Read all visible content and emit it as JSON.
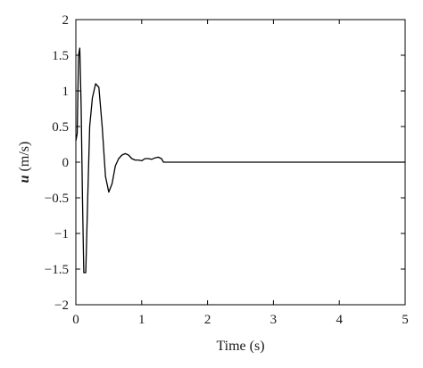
{
  "chart_data": {
    "type": "line",
    "title": "",
    "xlabel": "Time (s)",
    "ylabel_var": "u",
    "ylabel_unit": " (m/s)",
    "xlim": [
      0,
      5
    ],
    "ylim": [
      -2,
      2
    ],
    "x_ticks": [
      0,
      1,
      2,
      3,
      4,
      5
    ],
    "x_tick_labels": [
      "0",
      "1",
      "2",
      "3",
      "4",
      "5"
    ],
    "y_ticks": [
      2,
      1.5,
      1,
      0.5,
      0,
      -0.5,
      -1,
      -1.5,
      -2
    ],
    "y_tick_labels": [
      "2",
      "1.5",
      "1",
      "0.5",
      "0",
      "−0.5",
      "−1",
      "−1.5",
      "−2"
    ],
    "grid": false,
    "line_color": "#000000",
    "series": [
      {
        "x": [
          0,
          0.02,
          0.04,
          0.06,
          0.08,
          0.1,
          0.12,
          0.15,
          0.18,
          0.21,
          0.25,
          0.3,
          0.35,
          0.4,
          0.45,
          0.5,
          0.55,
          0.6,
          0.65,
          0.7,
          0.75,
          0.8,
          0.85,
          0.9,
          0.95,
          1.0,
          1.05,
          1.1,
          1.15,
          1.2,
          1.25,
          1.3,
          1.33,
          1.4,
          2,
          3,
          4,
          5
        ],
        "y": [
          0.3,
          0.4,
          1.5,
          1.6,
          0.8,
          -0.5,
          -1.55,
          -1.55,
          -0.5,
          0.5,
          0.9,
          1.1,
          1.05,
          0.5,
          -0.2,
          -0.42,
          -0.3,
          -0.05,
          0.05,
          0.1,
          0.12,
          0.1,
          0.05,
          0.03,
          0.03,
          0.02,
          0.05,
          0.05,
          0.04,
          0.06,
          0.07,
          0.05,
          0,
          0,
          0,
          0,
          0,
          0
        ]
      }
    ]
  }
}
